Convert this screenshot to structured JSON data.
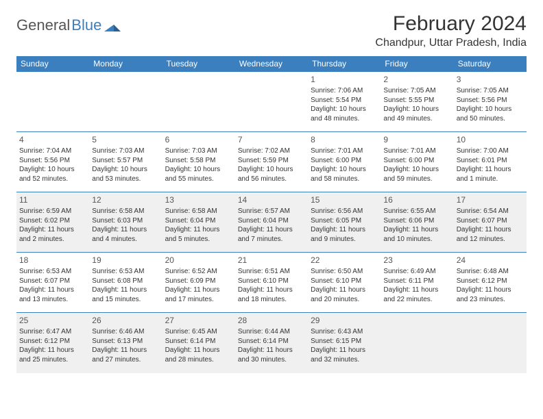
{
  "brand": {
    "part1": "General",
    "part2": "Blue"
  },
  "title": "February 2024",
  "location": "Chandpur, Uttar Pradesh, India",
  "colors": {
    "header_bg": "#3b7fbf",
    "header_text": "#ffffff",
    "border": "#3b7fbf",
    "shade_bg": "#f0f0f0",
    "text": "#333333",
    "background": "#ffffff"
  },
  "weekdays": [
    "Sunday",
    "Monday",
    "Tuesday",
    "Wednesday",
    "Thursday",
    "Friday",
    "Saturday"
  ],
  "weeks": [
    [
      null,
      null,
      null,
      null,
      {
        "day": "1",
        "sunrise": "Sunrise: 7:06 AM",
        "sunset": "Sunset: 5:54 PM",
        "daylight": "Daylight: 10 hours and 48 minutes."
      },
      {
        "day": "2",
        "sunrise": "Sunrise: 7:05 AM",
        "sunset": "Sunset: 5:55 PM",
        "daylight": "Daylight: 10 hours and 49 minutes."
      },
      {
        "day": "3",
        "sunrise": "Sunrise: 7:05 AM",
        "sunset": "Sunset: 5:56 PM",
        "daylight": "Daylight: 10 hours and 50 minutes."
      }
    ],
    [
      {
        "day": "4",
        "sunrise": "Sunrise: 7:04 AM",
        "sunset": "Sunset: 5:56 PM",
        "daylight": "Daylight: 10 hours and 52 minutes."
      },
      {
        "day": "5",
        "sunrise": "Sunrise: 7:03 AM",
        "sunset": "Sunset: 5:57 PM",
        "daylight": "Daylight: 10 hours and 53 minutes."
      },
      {
        "day": "6",
        "sunrise": "Sunrise: 7:03 AM",
        "sunset": "Sunset: 5:58 PM",
        "daylight": "Daylight: 10 hours and 55 minutes."
      },
      {
        "day": "7",
        "sunrise": "Sunrise: 7:02 AM",
        "sunset": "Sunset: 5:59 PM",
        "daylight": "Daylight: 10 hours and 56 minutes."
      },
      {
        "day": "8",
        "sunrise": "Sunrise: 7:01 AM",
        "sunset": "Sunset: 6:00 PM",
        "daylight": "Daylight: 10 hours and 58 minutes."
      },
      {
        "day": "9",
        "sunrise": "Sunrise: 7:01 AM",
        "sunset": "Sunset: 6:00 PM",
        "daylight": "Daylight: 10 hours and 59 minutes."
      },
      {
        "day": "10",
        "sunrise": "Sunrise: 7:00 AM",
        "sunset": "Sunset: 6:01 PM",
        "daylight": "Daylight: 11 hours and 1 minute."
      }
    ],
    [
      {
        "day": "11",
        "sunrise": "Sunrise: 6:59 AM",
        "sunset": "Sunset: 6:02 PM",
        "daylight": "Daylight: 11 hours and 2 minutes."
      },
      {
        "day": "12",
        "sunrise": "Sunrise: 6:58 AM",
        "sunset": "Sunset: 6:03 PM",
        "daylight": "Daylight: 11 hours and 4 minutes."
      },
      {
        "day": "13",
        "sunrise": "Sunrise: 6:58 AM",
        "sunset": "Sunset: 6:04 PM",
        "daylight": "Daylight: 11 hours and 5 minutes."
      },
      {
        "day": "14",
        "sunrise": "Sunrise: 6:57 AM",
        "sunset": "Sunset: 6:04 PM",
        "daylight": "Daylight: 11 hours and 7 minutes."
      },
      {
        "day": "15",
        "sunrise": "Sunrise: 6:56 AM",
        "sunset": "Sunset: 6:05 PM",
        "daylight": "Daylight: 11 hours and 9 minutes."
      },
      {
        "day": "16",
        "sunrise": "Sunrise: 6:55 AM",
        "sunset": "Sunset: 6:06 PM",
        "daylight": "Daylight: 11 hours and 10 minutes."
      },
      {
        "day": "17",
        "sunrise": "Sunrise: 6:54 AM",
        "sunset": "Sunset: 6:07 PM",
        "daylight": "Daylight: 11 hours and 12 minutes."
      }
    ],
    [
      {
        "day": "18",
        "sunrise": "Sunrise: 6:53 AM",
        "sunset": "Sunset: 6:07 PM",
        "daylight": "Daylight: 11 hours and 13 minutes."
      },
      {
        "day": "19",
        "sunrise": "Sunrise: 6:53 AM",
        "sunset": "Sunset: 6:08 PM",
        "daylight": "Daylight: 11 hours and 15 minutes."
      },
      {
        "day": "20",
        "sunrise": "Sunrise: 6:52 AM",
        "sunset": "Sunset: 6:09 PM",
        "daylight": "Daylight: 11 hours and 17 minutes."
      },
      {
        "day": "21",
        "sunrise": "Sunrise: 6:51 AM",
        "sunset": "Sunset: 6:10 PM",
        "daylight": "Daylight: 11 hours and 18 minutes."
      },
      {
        "day": "22",
        "sunrise": "Sunrise: 6:50 AM",
        "sunset": "Sunset: 6:10 PM",
        "daylight": "Daylight: 11 hours and 20 minutes."
      },
      {
        "day": "23",
        "sunrise": "Sunrise: 6:49 AM",
        "sunset": "Sunset: 6:11 PM",
        "daylight": "Daylight: 11 hours and 22 minutes."
      },
      {
        "day": "24",
        "sunrise": "Sunrise: 6:48 AM",
        "sunset": "Sunset: 6:12 PM",
        "daylight": "Daylight: 11 hours and 23 minutes."
      }
    ],
    [
      {
        "day": "25",
        "sunrise": "Sunrise: 6:47 AM",
        "sunset": "Sunset: 6:12 PM",
        "daylight": "Daylight: 11 hours and 25 minutes."
      },
      {
        "day": "26",
        "sunrise": "Sunrise: 6:46 AM",
        "sunset": "Sunset: 6:13 PM",
        "daylight": "Daylight: 11 hours and 27 minutes."
      },
      {
        "day": "27",
        "sunrise": "Sunrise: 6:45 AM",
        "sunset": "Sunset: 6:14 PM",
        "daylight": "Daylight: 11 hours and 28 minutes."
      },
      {
        "day": "28",
        "sunrise": "Sunrise: 6:44 AM",
        "sunset": "Sunset: 6:14 PM",
        "daylight": "Daylight: 11 hours and 30 minutes."
      },
      {
        "day": "29",
        "sunrise": "Sunrise: 6:43 AM",
        "sunset": "Sunset: 6:15 PM",
        "daylight": "Daylight: 11 hours and 32 minutes."
      },
      null,
      null
    ]
  ],
  "shaded_rows": [
    2,
    4
  ]
}
